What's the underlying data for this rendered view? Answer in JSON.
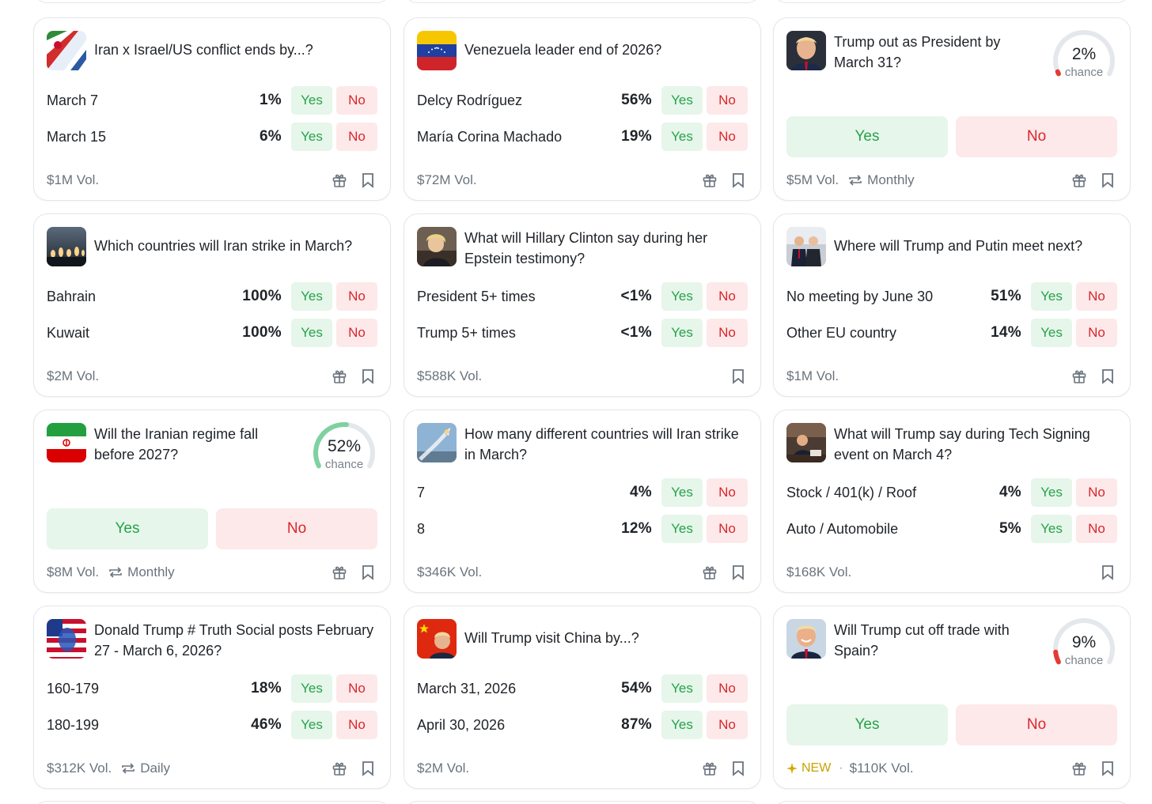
{
  "colors": {
    "yes": "#27a24b",
    "no": "#d9262b",
    "gauge_low": "#e53935",
    "gauge_mid": "#7fd1a0"
  },
  "cards": [
    {
      "title": "Iran x Israel/US conflict ends by...?",
      "icon": "iran-israel-flags-icon",
      "rows": [
        {
          "label": "March 7",
          "pct": "1%",
          "yes": "Yes",
          "no": "No"
        },
        {
          "label": "March 15",
          "pct": "6%",
          "yes": "Yes",
          "no": "No"
        }
      ],
      "volume": "$1M Vol."
    },
    {
      "title": "Venezuela leader end of 2026?",
      "icon": "venezuela-flag-icon",
      "rows": [
        {
          "label": "Delcy Rodríguez",
          "pct": "56%",
          "yes": "Yes",
          "no": "No"
        },
        {
          "label": "María Corina Machado",
          "pct": "19%",
          "yes": "Yes",
          "no": "No"
        }
      ],
      "volume": "$72M Vol."
    },
    {
      "title": "Trump out as President by March 31?",
      "icon": "trump-portrait-icon",
      "chance": {
        "value": "2%",
        "label": "chance",
        "fraction": 0.02
      },
      "yes": "Yes",
      "no": "No",
      "volume": "$5M Vol.",
      "recurrence": "Monthly"
    },
    {
      "title": "Which countries will Iran strike in March?",
      "icon": "missile-launch-icon",
      "rows": [
        {
          "label": "Bahrain",
          "pct": "100%",
          "yes": "Yes",
          "no": "No"
        },
        {
          "label": "Kuwait",
          "pct": "100%",
          "yes": "Yes",
          "no": "No"
        }
      ],
      "volume": "$2M Vol."
    },
    {
      "title": "What will Hillary Clinton say during her Epstein testimony?",
      "icon": "hillary-clinton-icon",
      "rows": [
        {
          "label": "President 5+ times",
          "pct": "<1%",
          "yes": "Yes",
          "no": "No"
        },
        {
          "label": "Trump 5+ times",
          "pct": "<1%",
          "yes": "Yes",
          "no": "No"
        }
      ],
      "volume": "$588K Vol."
    },
    {
      "title": "Where will Trump and Putin meet next?",
      "icon": "trump-putin-icon",
      "rows": [
        {
          "label": "No meeting by June 30",
          "pct": "51%",
          "yes": "Yes",
          "no": "No"
        },
        {
          "label": "Other EU country",
          "pct": "14%",
          "yes": "Yes",
          "no": "No"
        }
      ],
      "volume": "$1M Vol."
    },
    {
      "title": "Will the Iranian regime fall before 2027?",
      "icon": "iran-flag-icon",
      "chance": {
        "value": "52%",
        "label": "chance",
        "fraction": 0.52
      },
      "yes": "Yes",
      "no": "No",
      "volume": "$8M Vol.",
      "recurrence": "Monthly"
    },
    {
      "title": "How many different countries will Iran strike in March?",
      "icon": "missile-sky-icon",
      "rows": [
        {
          "label": "7",
          "pct": "4%",
          "yes": "Yes",
          "no": "No"
        },
        {
          "label": "8",
          "pct": "12%",
          "yes": "Yes",
          "no": "No"
        }
      ],
      "volume": "$346K Vol."
    },
    {
      "title": "What will Trump say during Tech Signing event on March 4?",
      "icon": "trump-desk-icon",
      "rows": [
        {
          "label": "Stock / 401(k) / Roof",
          "pct": "4%",
          "yes": "Yes",
          "no": "No"
        },
        {
          "label": "Auto / Automobile",
          "pct": "5%",
          "yes": "Yes",
          "no": "No"
        }
      ],
      "volume": "$168K Vol."
    },
    {
      "title": "Donald Trump # Truth Social posts February 27 - March 6, 2026?",
      "icon": "trump-flag-icon",
      "rows": [
        {
          "label": "160-179",
          "pct": "18%",
          "yes": "Yes",
          "no": "No"
        },
        {
          "label": "180-199",
          "pct": "46%",
          "yes": "Yes",
          "no": "No"
        }
      ],
      "volume": "$312K Vol.",
      "recurrence": "Daily"
    },
    {
      "title": "Will Trump visit China by...?",
      "icon": "trump-china-icon",
      "rows": [
        {
          "label": "March 31, 2026",
          "pct": "54%",
          "yes": "Yes",
          "no": "No"
        },
        {
          "label": "April 30, 2026",
          "pct": "87%",
          "yes": "Yes",
          "no": "No"
        }
      ],
      "volume": "$2M Vol."
    },
    {
      "title": "Will Trump cut off trade with Spain?",
      "icon": "trump-smile-icon",
      "chance": {
        "value": "9%",
        "label": "chance",
        "fraction": 0.09
      },
      "yes": "Yes",
      "no": "No",
      "volume": "$110K Vol.",
      "new_tag": "NEW"
    }
  ]
}
